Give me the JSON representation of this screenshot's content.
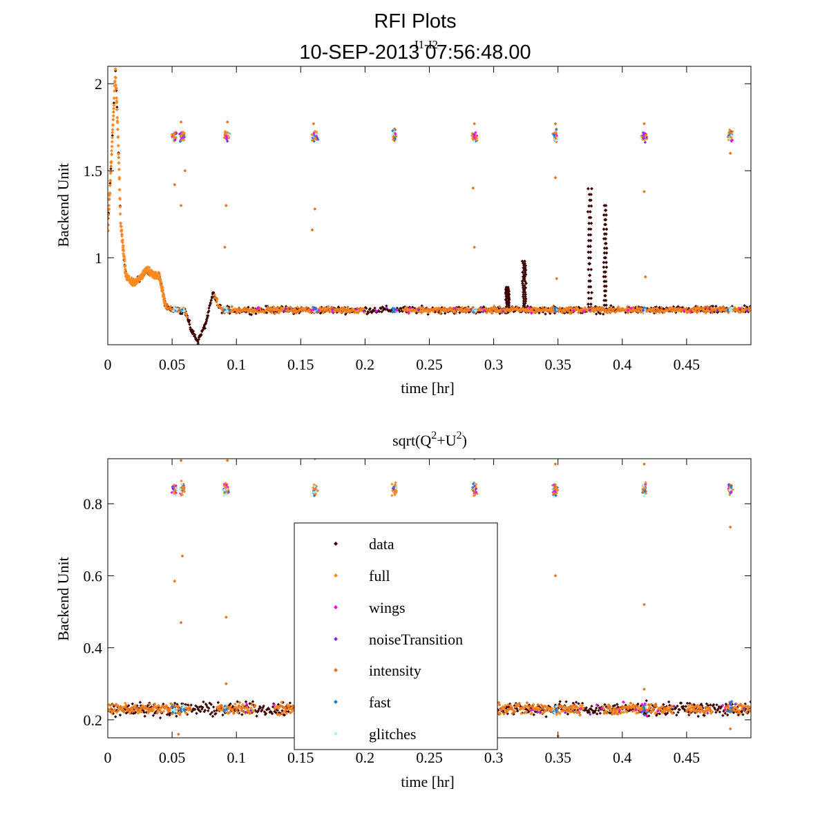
{
  "figure": {
    "title": "RFI Plots",
    "subtitle": "10-SEP-2013 07:56:48.00",
    "overlap_label": "I1-I2"
  },
  "colors": {
    "data": "#3d0000",
    "full": "#ff8a22",
    "wings": "#ff00ff",
    "noiseTransition": "#8a2be2",
    "intensity": "#e8731a",
    "fast": "#1e7fd0",
    "glitches": "#a8f0ff"
  },
  "legend": {
    "entries": [
      {
        "key": "data",
        "label": "data"
      },
      {
        "key": "full",
        "label": "full"
      },
      {
        "key": "wings",
        "label": "wings"
      },
      {
        "key": "noiseTransition",
        "label": "noiseTransition"
      },
      {
        "key": "intensity",
        "label": "intensity"
      },
      {
        "key": "fast",
        "label": "fast"
      },
      {
        "key": "glitches",
        "label": "glitches"
      }
    ]
  },
  "chart_data": [
    {
      "type": "scatter",
      "title": "",
      "xlabel": "time [hr]",
      "ylabel": "Backend Unit",
      "xlim": [
        0,
        0.5
      ],
      "ylim": [
        0.5,
        2.1
      ],
      "xticks": [
        0,
        0.05,
        0.1,
        0.15,
        0.2,
        0.25,
        0.3,
        0.35,
        0.4,
        0.45
      ],
      "xtick_labels": [
        "0",
        "0.05",
        "0.1",
        "0.15",
        "0.2",
        "0.25",
        "0.3",
        "0.35",
        "0.4",
        "0.45"
      ],
      "yticks": [
        1,
        1.5,
        2
      ],
      "ytick_labels": [
        "1",
        "1.5",
        "2"
      ],
      "baseline": 0.7,
      "drift": [
        [
          0,
          1.15
        ],
        [
          0.003,
          1.6
        ],
        [
          0.006,
          2.08
        ],
        [
          0.008,
          1.7
        ],
        [
          0.01,
          1.2
        ],
        [
          0.014,
          0.9
        ],
        [
          0.018,
          0.86
        ],
        [
          0.024,
          0.87
        ],
        [
          0.03,
          0.93
        ],
        [
          0.036,
          0.9
        ],
        [
          0.04,
          0.9
        ],
        [
          0.045,
          0.72
        ],
        [
          0.05,
          0.7
        ],
        [
          0.06,
          0.7
        ],
        [
          0.065,
          0.58
        ],
        [
          0.07,
          0.52
        ],
        [
          0.076,
          0.62
        ],
        [
          0.082,
          0.8
        ],
        [
          0.086,
          0.72
        ],
        [
          0.09,
          0.7
        ],
        [
          0.5,
          0.7
        ]
      ],
      "cal_times": [
        0.052,
        0.058,
        0.092,
        0.161,
        0.223,
        0.285,
        0.348,
        0.417,
        0.484
      ],
      "cal_level": 1.7,
      "data_spikes": [
        [
          0.31,
          0.83
        ],
        [
          0.323,
          0.98
        ],
        [
          0.374,
          1.43
        ],
        [
          0.386,
          1.3
        ]
      ],
      "outliers": [
        [
          0.057,
          1.78
        ],
        [
          0.06,
          1.5
        ],
        [
          0.057,
          1.3
        ],
        [
          0.052,
          1.42
        ],
        [
          0.093,
          1.78
        ],
        [
          0.092,
          1.3
        ],
        [
          0.091,
          1.06
        ],
        [
          0.16,
          1.77
        ],
        [
          0.161,
          1.28
        ],
        [
          0.159,
          1.16
        ],
        [
          0.223,
          1.74
        ],
        [
          0.285,
          1.77
        ],
        [
          0.284,
          1.4
        ],
        [
          0.285,
          1.06
        ],
        [
          0.348,
          1.77
        ],
        [
          0.348,
          1.46
        ],
        [
          0.349,
          0.88
        ],
        [
          0.417,
          1.77
        ],
        [
          0.417,
          1.38
        ],
        [
          0.418,
          0.89
        ],
        [
          0.484,
          1.6
        ],
        [
          0.484,
          1.72
        ]
      ]
    },
    {
      "type": "scatter",
      "title": "sqrt(Q^2+U^2)",
      "title_parts": {
        "a": "sqrt(Q",
        "b": "2",
        "c": "+U",
        "d": "2",
        "e": ")"
      },
      "xlabel": "time [hr]",
      "ylabel": "Backend Unit",
      "xlim": [
        0,
        0.5
      ],
      "ylim": [
        0.15,
        0.925
      ],
      "xticks": [
        0,
        0.05,
        0.1,
        0.15,
        0.2,
        0.25,
        0.3,
        0.35,
        0.4,
        0.45
      ],
      "xtick_labels": [
        "0",
        "0.05",
        "0.1",
        "0.15",
        "0.2",
        "0.25",
        "0.3",
        "0.35",
        "0.4",
        "0.45"
      ],
      "yticks": [
        0.2,
        0.4,
        0.6,
        0.8
      ],
      "ytick_labels": [
        "0.2",
        "0.4",
        "0.6",
        "0.8"
      ],
      "baseline": 0.23,
      "cal_times": [
        0.052,
        0.058,
        0.092,
        0.161,
        0.223,
        0.285,
        0.348,
        0.417,
        0.484
      ],
      "cal_level": 0.84,
      "outliers": [
        [
          0.057,
          0.92
        ],
        [
          0.058,
          0.655
        ],
        [
          0.057,
          0.47
        ],
        [
          0.052,
          0.585
        ],
        [
          0.093,
          0.92
        ],
        [
          0.092,
          0.485
        ],
        [
          0.092,
          0.3
        ],
        [
          0.161,
          0.925
        ],
        [
          0.285,
          0.925
        ],
        [
          0.348,
          0.91
        ],
        [
          0.348,
          0.6
        ],
        [
          0.417,
          0.91
        ],
        [
          0.417,
          0.52
        ],
        [
          0.417,
          0.285
        ],
        [
          0.484,
          0.735
        ],
        [
          0.484,
          0.175
        ],
        [
          0.055,
          0.16
        ],
        [
          0.35,
          0.155
        ]
      ]
    }
  ]
}
